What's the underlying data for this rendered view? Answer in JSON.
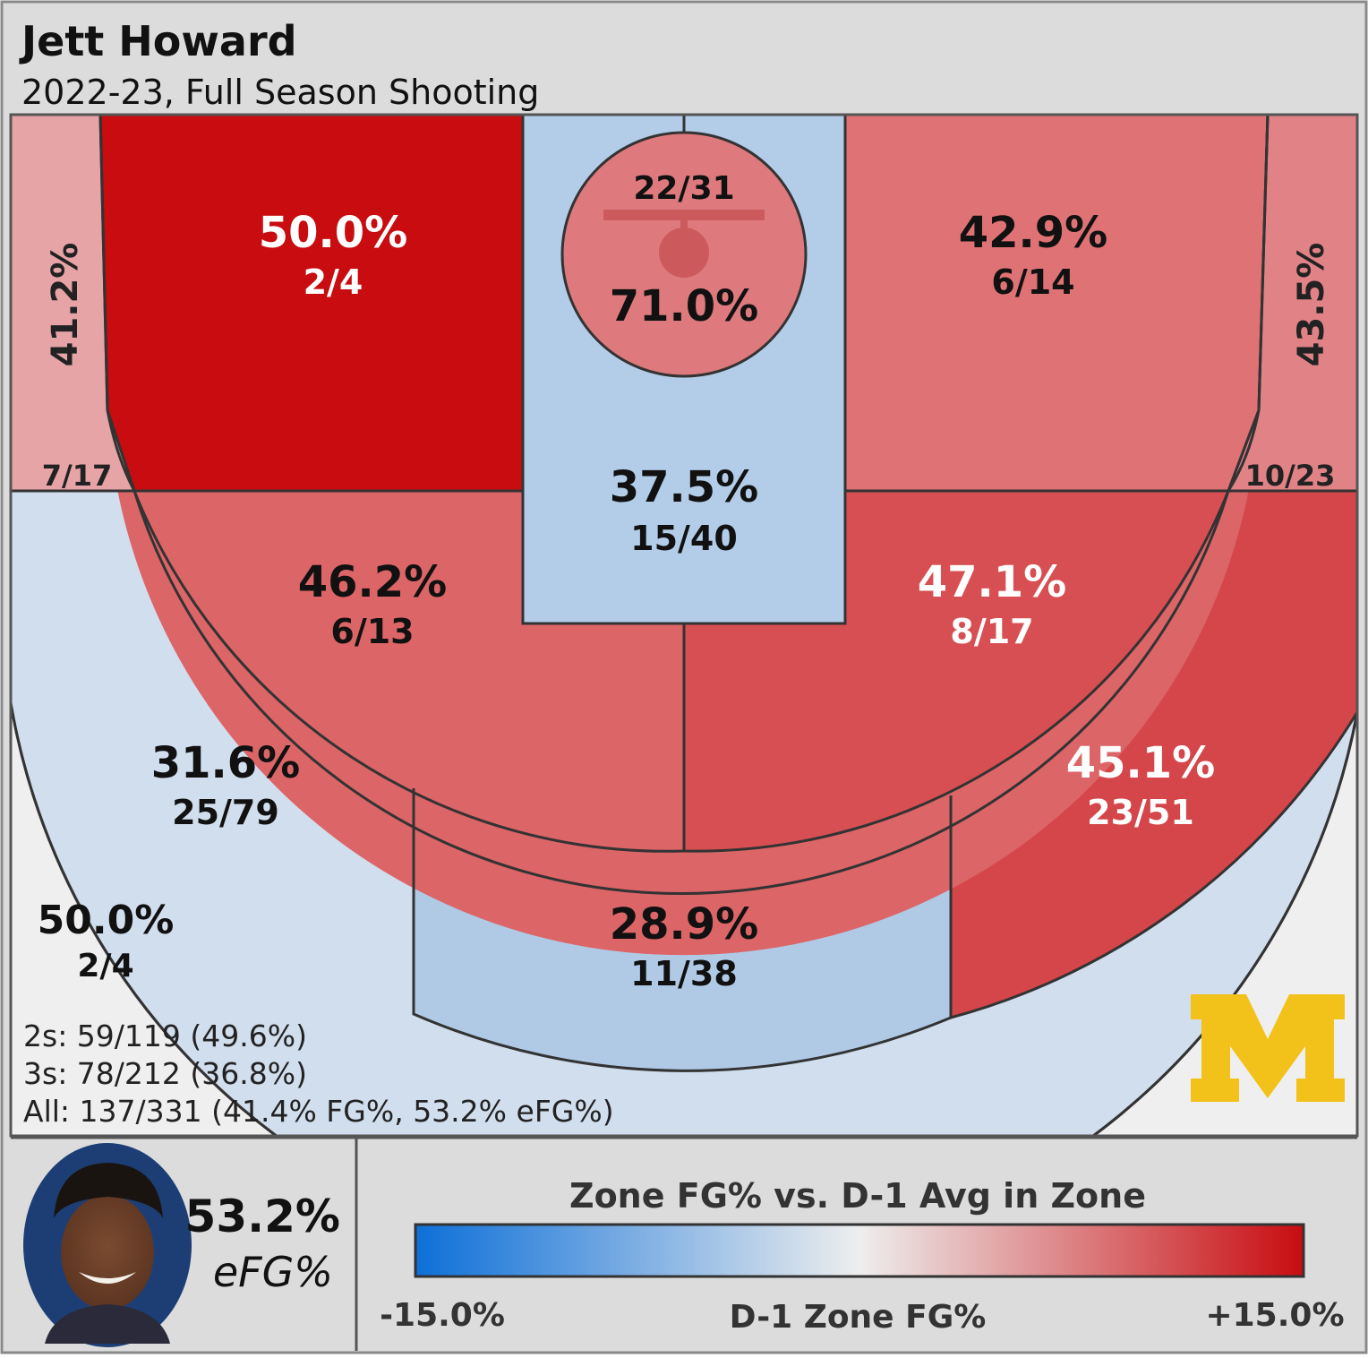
{
  "header": {
    "player_name": "Jett Howard",
    "subtitle": "2022-23, Full Season Shooting"
  },
  "chart_data": {
    "type": "heatmap",
    "description_type": "basketball shot chart by zone",
    "zones": [
      {
        "id": "left-corner-three",
        "pct": "41.2%",
        "made": 7,
        "att": 17,
        "fraction": "7/17",
        "color": "#e6a4a7"
      },
      {
        "id": "left-baseline-two",
        "pct": "50.0%",
        "made": 2,
        "att": 4,
        "fraction": "2/4",
        "color": "#c80c10"
      },
      {
        "id": "restricted-area",
        "pct": "71.0%",
        "made": 22,
        "att": 31,
        "fraction": "22/31",
        "color": "#de7a7d"
      },
      {
        "id": "paint-non-ra",
        "pct": "37.5%",
        "made": 15,
        "att": 40,
        "fraction": "15/40",
        "color": "#b3cde8"
      },
      {
        "id": "right-baseline-two",
        "pct": "42.9%",
        "made": 6,
        "att": 14,
        "fraction": "6/14",
        "color": "#de7274"
      },
      {
        "id": "right-corner-three",
        "pct": "43.5%",
        "made": 10,
        "att": 23,
        "fraction": "10/23",
        "color": "#e18386"
      },
      {
        "id": "left-wing-two",
        "pct": "46.2%",
        "made": 6,
        "att": 13,
        "fraction": "6/13",
        "color": "#dc6567"
      },
      {
        "id": "right-wing-two",
        "pct": "47.1%",
        "made": 8,
        "att": 17,
        "fraction": "8/17",
        "color": "#d84f53"
      },
      {
        "id": "left-wing-three",
        "pct": "31.6%",
        "made": 25,
        "att": 79,
        "fraction": "25/79",
        "color": "#d1deed"
      },
      {
        "id": "top-key-three",
        "pct": "28.9%",
        "made": 11,
        "att": 38,
        "fraction": "11/38",
        "color": "#b0cae6"
      },
      {
        "id": "right-wing-three",
        "pct": "45.1%",
        "made": 23,
        "att": 51,
        "fraction": "23/51",
        "color": "#d5464a"
      },
      {
        "id": "deep-three",
        "pct": "50.0%",
        "made": 2,
        "att": 4,
        "fraction": "2/4",
        "color": "#efefef"
      }
    ],
    "summary": {
      "twos": "2s: 59/119 (49.6%)",
      "threes": "3s: 78/212 (36.8%)",
      "all": "All: 137/331 (41.4% FG%, 53.2% eFG%)"
    }
  },
  "footer": {
    "efg_value": "53.2%",
    "efg_label": "eFG%",
    "legend_title": "Zone FG% vs. D-1 Avg in Zone",
    "legend_min": "-15.0%",
    "legend_mid": "D-1 Zone FG%",
    "legend_max": "+15.0%",
    "colors": {
      "low": "#0d6fd8",
      "mid": "#eeeeee",
      "high": "#c80c10"
    }
  },
  "logo": {
    "letter": "M",
    "color": "#f2c21b"
  }
}
